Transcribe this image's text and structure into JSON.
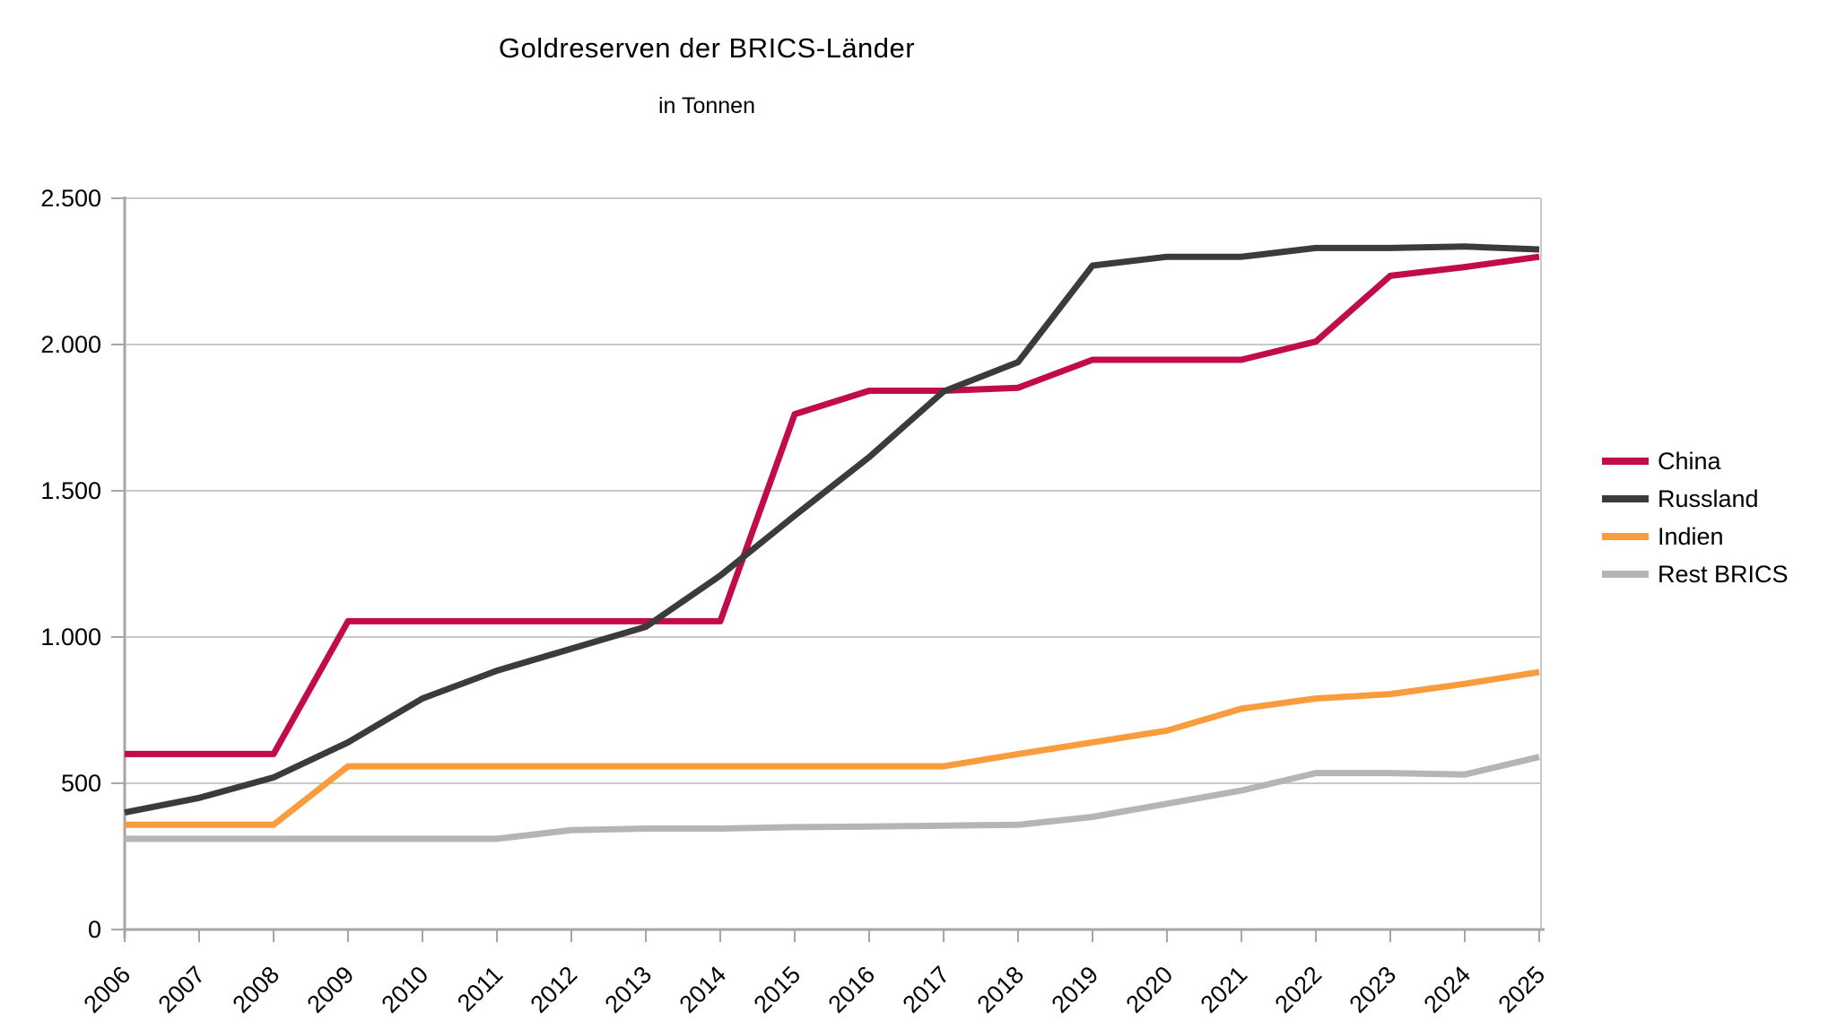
{
  "header": {
    "title": "Goldreserven der BRICS-Länder",
    "subtitle": "in Tonnen"
  },
  "colors": {
    "china": "#C10B4B",
    "russland": "#3B3B3B",
    "indien": "#F99C3E",
    "rest_brics": "#B5B5B5",
    "gridline": "#C9C9C9",
    "axis": "#A6A6A6",
    "text": "#000000",
    "background": "#FFFFFF"
  },
  "chart_data": {
    "type": "line",
    "title": "Goldreserven der BRICS-Länder",
    "subtitle": "in Tonnen",
    "xlabel": "",
    "ylabel": "",
    "x": [
      2006,
      2007,
      2008,
      2009,
      2010,
      2011,
      2012,
      2013,
      2014,
      2015,
      2016,
      2017,
      2018,
      2019,
      2020,
      2021,
      2022,
      2023,
      2024,
      2025
    ],
    "series": [
      {
        "name": "China",
        "color": "#C10B4B",
        "values": [
          600,
          600,
          600,
          1054,
          1054,
          1054,
          1054,
          1054,
          1054,
          1762,
          1842,
          1842,
          1852,
          1948,
          1948,
          1948,
          2010,
          2235,
          2265,
          2300
        ]
      },
      {
        "name": "Russland",
        "color": "#3B3B3B",
        "values": [
          400,
          450,
          520,
          640,
          790,
          885,
          960,
          1035,
          1210,
          1415,
          1615,
          1840,
          1940,
          2270,
          2300,
          2300,
          2330,
          2330,
          2335,
          2325
        ]
      },
      {
        "name": "Indien",
        "color": "#F99C3E",
        "values": [
          358,
          358,
          358,
          558,
          558,
          558,
          558,
          558,
          558,
          558,
          558,
          558,
          600,
          640,
          680,
          755,
          790,
          805,
          840,
          880
        ]
      },
      {
        "name": "Rest BRICS",
        "color": "#B5B5B5",
        "values": [
          310,
          310,
          310,
          310,
          310,
          310,
          340,
          345,
          345,
          350,
          352,
          355,
          358,
          385,
          430,
          475,
          535,
          535,
          530,
          590
        ]
      }
    ],
    "ylim": [
      0,
      2500
    ],
    "ytick_step": 500,
    "ytick_labels": [
      "0",
      "500",
      "1.000",
      "1.500",
      "2.000",
      "2.500"
    ],
    "xtick_labels": [
      "2006",
      "2007",
      "2008",
      "2009",
      "2010",
      "2011",
      "2012",
      "2013",
      "2014",
      "2015",
      "2016",
      "2017",
      "2018",
      "2019",
      "2020",
      "2021",
      "2022",
      "2023",
      "2024",
      "2025"
    ],
    "grid": "horizontal",
    "legend_position": "right",
    "legend_entries": [
      "China",
      "Russland",
      "Indien",
      "Rest BRICS"
    ]
  }
}
